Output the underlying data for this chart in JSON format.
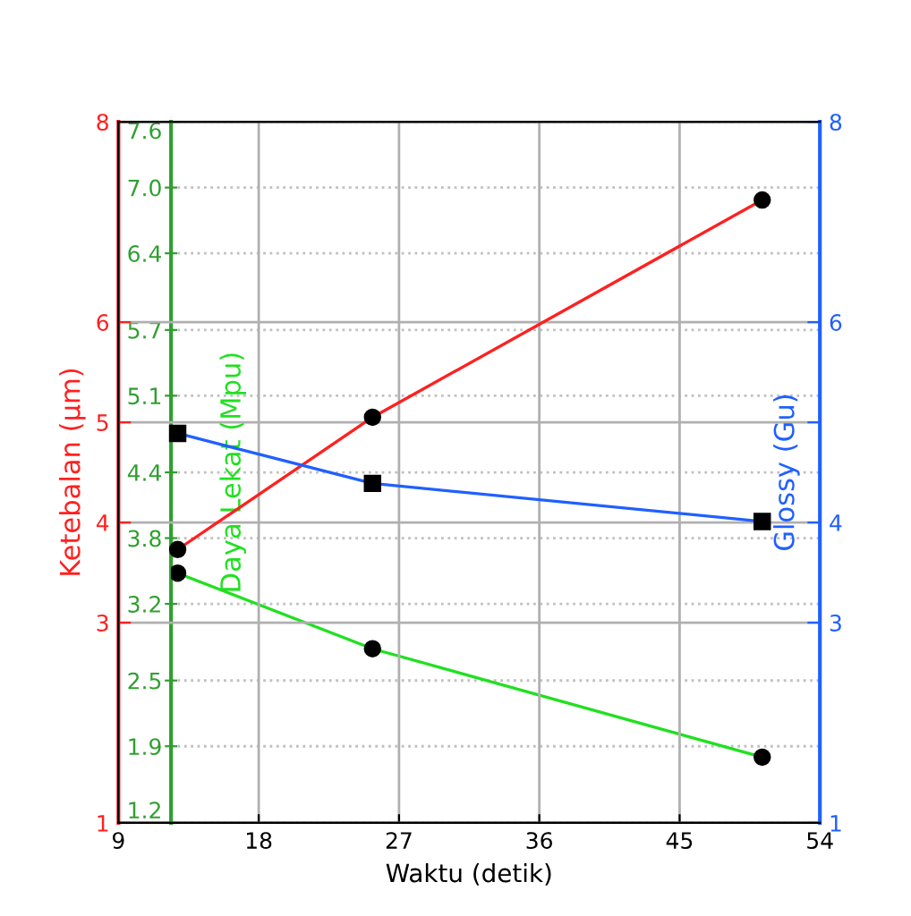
{
  "chart_data": {
    "type": "line",
    "xlabel": "Waktu (detik)",
    "ylabel": "Ketebalan (μm)",
    "y2label": "Glossy (Gu)",
    "y3label": "Daya Lekat (Mpu)",
    "xlim": [
      9,
      54
    ],
    "xticks": [
      9,
      18,
      27,
      36,
      45,
      54
    ],
    "ylim": [
      1,
      8
    ],
    "yticks": [
      1,
      3,
      4,
      5,
      6,
      8
    ],
    "y2lim": [
      1,
      8
    ],
    "y2ticks": [
      1,
      3,
      4,
      {
        "value": 5,
        "label": null
      },
      6,
      8
    ],
    "y3lim": [
      1.2,
      7.6
    ],
    "y3ticks": [
      1.2,
      1.9,
      2.5,
      3.2,
      3.8,
      4.4,
      5.1,
      5.7,
      6.4,
      {
        "value": 7.0,
        "label": "7.0"
      },
      7.6
    ],
    "grid": true,
    "legend": false,
    "series": [
      {
        "color": "#ff2020",
        "axis": "y",
        "marker": "circle",
        "x": [
          12.8,
          25.3,
          50.3
        ],
        "values": [
          3.73,
          5.05,
          7.22
        ]
      },
      {
        "color": "#20e020",
        "axis": "y3",
        "marker": "circle",
        "x": [
          12.8,
          25.3,
          50.3
        ],
        "values": [
          3.48,
          2.79,
          1.8
        ]
      },
      {
        "color": "#2060ff",
        "axis": "y2",
        "marker": "square",
        "x": [
          12.8,
          25.3,
          50.3
        ],
        "values": [
          4.89,
          4.39,
          4.01
        ]
      }
    ]
  }
}
